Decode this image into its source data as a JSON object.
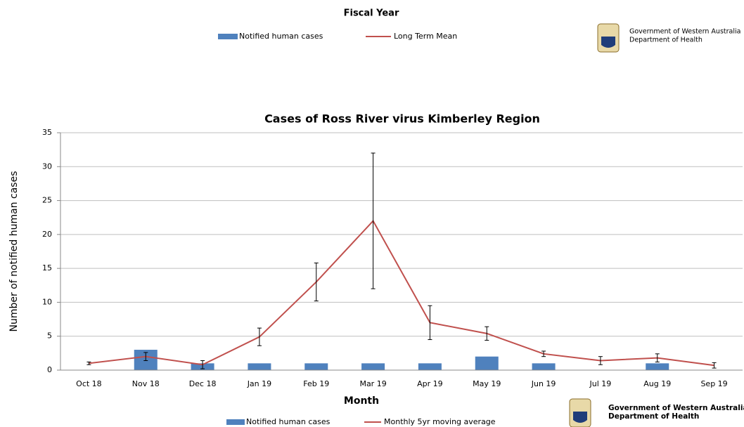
{
  "header": {
    "title": "Fiscal Year",
    "legend": [
      {
        "name": "Notified human cases",
        "color": "#4f81bd",
        "kind": "bar"
      },
      {
        "name": "Long Term Mean",
        "color": "#c0504d",
        "kind": "line"
      }
    ]
  },
  "logos": [
    {
      "line1": "Government of Western Australia",
      "line2": "Department of Health"
    },
    {
      "line1": "Government of Western Australia",
      "line2": "Department of Health"
    }
  ],
  "chart_data": {
    "type": "bar",
    "title": "Cases of Ross River virus  Kimberley Region",
    "x_label": "Month",
    "y_label": "Number of notified human cases",
    "categories": [
      "Oct 18",
      "Nov 18",
      "Dec 18",
      "Jan 19",
      "Feb 19",
      "Mar 19",
      "Apr 19",
      "May 19",
      "Jun 19",
      "Jul 19",
      "Aug 19",
      "Sep 19"
    ],
    "series": [
      {
        "name": "Notified human cases",
        "type": "bar",
        "color": "#4f81bd",
        "values": [
          0,
          3,
          1,
          1,
          1,
          1,
          1,
          2,
          1,
          0,
          1,
          0
        ]
      },
      {
        "name": "Monthly 5yr moving average",
        "type": "line",
        "color": "#c0504d",
        "values": [
          1,
          2,
          0.8,
          4.9,
          13,
          22,
          7,
          5.4,
          2.4,
          1.4,
          1.8,
          0.7
        ],
        "errors": [
          0.2,
          0.6,
          0.6,
          1.3,
          2.8,
          10,
          2.5,
          1,
          0.4,
          0.6,
          0.6,
          0.4
        ]
      }
    ],
    "ylim": [
      0,
      35
    ],
    "yticks": [
      0,
      5,
      10,
      15,
      20,
      25,
      30,
      35
    ],
    "grid": true,
    "legend": "bottom"
  }
}
